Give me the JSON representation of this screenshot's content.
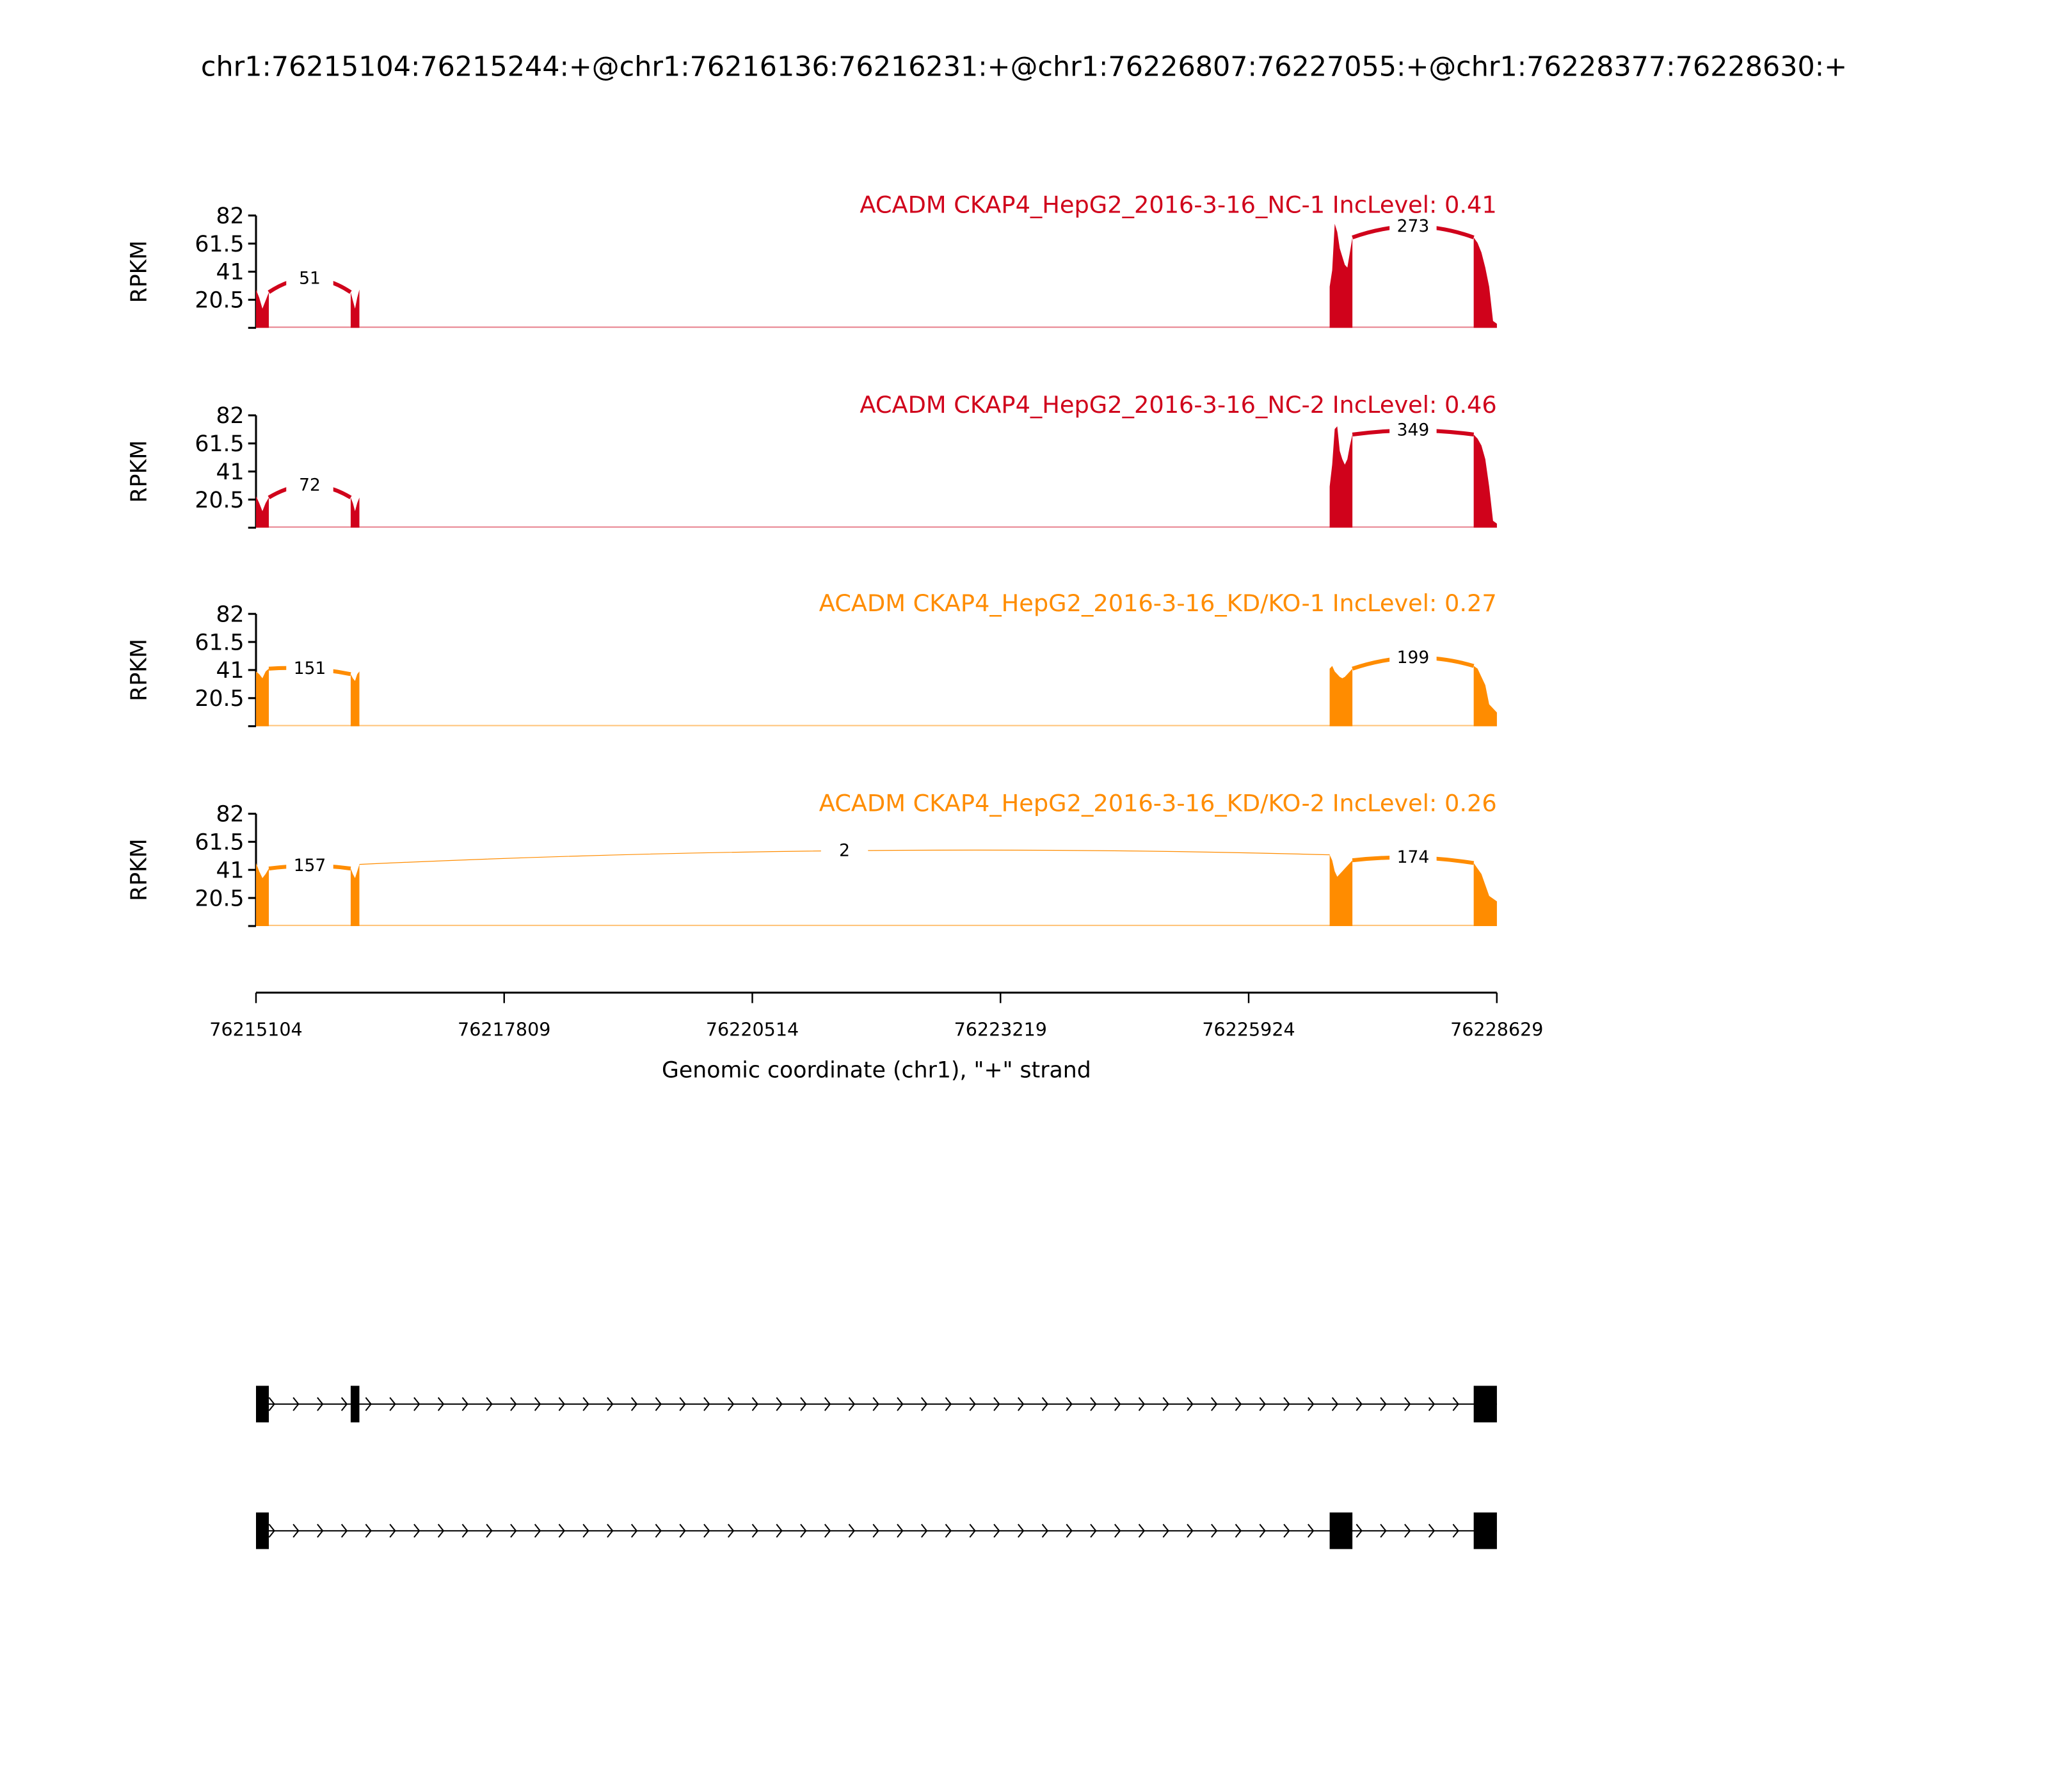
{
  "chart_data": {
    "type": "area",
    "title": "chr1:76215104:76215244:+@chr1:76216136:76216231:+@chr1:76226807:76227055:+@chr1:76228377:76228630:+",
    "xlabel": "Genomic coordinate (chr1), \"+\" strand",
    "ylabel": "RPKM",
    "xlim": [
      76215104,
      76228629
    ],
    "xticks": [
      "76215104",
      "76217809",
      "76220514",
      "76223219",
      "76225924",
      "76228629"
    ],
    "ylim": [
      0,
      82
    ],
    "yticks": [
      "20.5",
      "41",
      "61.5",
      "82"
    ],
    "colors": {
      "NC": "#d0021b",
      "KD/KO": "#ff8c00"
    },
    "exons": [
      [
        76215104,
        76215244
      ],
      [
        76216136,
        76216231
      ],
      [
        76226807,
        76227055
      ],
      [
        76228377,
        76228630
      ]
    ],
    "samples": [
      {
        "label": "ACADM CKAP4_HepG2_2016-3-16_NC-1 IncLevel: 0.41",
        "group": "NC",
        "exon_coverage": [
          [
            28,
            22,
            14,
            20,
            26
          ],
          [
            26,
            20,
            14,
            22,
            28
          ],
          [
            30,
            42,
            76,
            70,
            58,
            52,
            46,
            44,
            55,
            66
          ],
          [
            66,
            62,
            55,
            44,
            30,
            5,
            3
          ]
        ],
        "junctions": [
          {
            "from": 76215244,
            "to": 76216136,
            "count": "51",
            "peak": 36
          },
          {
            "from": 76227055,
            "to": 76228377,
            "count": "273",
            "peak": 74
          }
        ]
      },
      {
        "label": "ACADM CKAP4_HepG2_2016-3-16_NC-2 IncLevel: 0.46",
        "group": "NC",
        "exon_coverage": [
          [
            23,
            18,
            12,
            18,
            22
          ],
          [
            22,
            18,
            12,
            18,
            22
          ],
          [
            30,
            46,
            72,
            74,
            56,
            50,
            46,
            50,
            60,
            68
          ],
          [
            68,
            65,
            60,
            50,
            30,
            5,
            3
          ]
        ],
        "junctions": [
          {
            "from": 76215244,
            "to": 76216136,
            "count": "72",
            "peak": 31
          },
          {
            "from": 76227055,
            "to": 76228377,
            "count": "349",
            "peak": 71
          }
        ]
      },
      {
        "label": "ACADM CKAP4_HepG2_2016-3-16_KD/KO-1 IncLevel: 0.27",
        "group": "KD/KO",
        "exon_coverage": [
          [
            40,
            38,
            35,
            40,
            42
          ],
          [
            38,
            35,
            33,
            38,
            40
          ],
          [
            42,
            44,
            40,
            38,
            36,
            35,
            36,
            38,
            40,
            42
          ],
          [
            44,
            42,
            36,
            30,
            16,
            13,
            10
          ]
        ],
        "junctions": [
          {
            "from": 76215244,
            "to": 76216136,
            "count": "151",
            "peak": 42
          },
          {
            "from": 76227055,
            "to": 76228377,
            "count": "199",
            "peak": 50
          }
        ]
      },
      {
        "label": "ACADM CKAP4_HepG2_2016-3-16_KD/KO-2 IncLevel: 0.26",
        "group": "KD/KO",
        "exon_coverage": [
          [
            46,
            40,
            35,
            38,
            42
          ],
          [
            42,
            38,
            35,
            40,
            45
          ],
          [
            52,
            48,
            40,
            36,
            38,
            40,
            42,
            44,
            46,
            48
          ],
          [
            46,
            42,
            38,
            30,
            22,
            20,
            18
          ]
        ],
        "junctions": [
          {
            "from": 76215244,
            "to": 76216136,
            "count": "157",
            "peak": 44
          },
          {
            "from": 76216231,
            "to": 76226807,
            "count": "2",
            "peak": 55
          },
          {
            "from": 76227055,
            "to": 76228377,
            "count": "174",
            "peak": 50
          }
        ]
      }
    ],
    "transcripts": [
      {
        "exons": [
          [
            76215104,
            76215244
          ],
          [
            76216136,
            76216231
          ],
          [
            76228377,
            76228630
          ]
        ]
      },
      {
        "exons": [
          [
            76215104,
            76215244
          ],
          [
            76226807,
            76227055
          ],
          [
            76228377,
            76228630
          ]
        ]
      }
    ]
  }
}
